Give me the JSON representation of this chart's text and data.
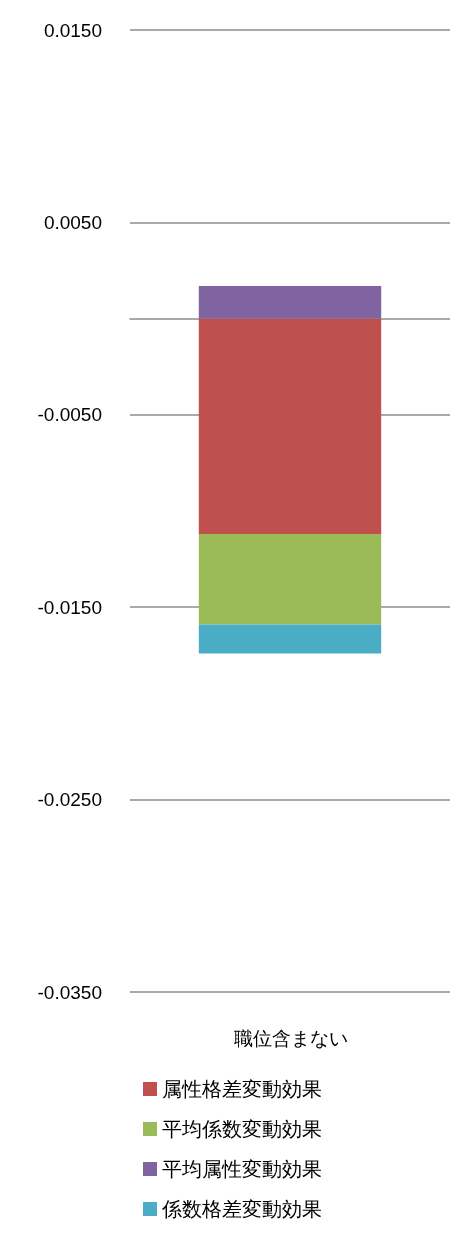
{
  "chart_data": {
    "type": "bar",
    "stacked": true,
    "categories": [
      "職位含まない"
    ],
    "series": [
      {
        "name": "属性格差変動効果",
        "color": "#c0504d",
        "values": [
          -0.0112
        ]
      },
      {
        "name": "平均係数変動効果",
        "color": "#9bbb59",
        "values": [
          -0.0047
        ]
      },
      {
        "name": "平均属性変動効果",
        "color": "#8064a2",
        "values": [
          0.0017
        ]
      },
      {
        "name": "係数格差変動効果",
        "color": "#4bacc6",
        "values": [
          -0.0015
        ]
      }
    ],
    "ylim": [
      -0.035,
      0.015
    ],
    "yticks": [
      {
        "value": -0.035,
        "label": "-0.0350"
      },
      {
        "value": -0.025,
        "label": "-0.0250"
      },
      {
        "value": -0.015,
        "label": "-0.0150"
      },
      {
        "value": -0.005,
        "label": "-0.0050"
      },
      {
        "value": 0.005,
        "label": "0.0050"
      },
      {
        "value": 0.015,
        "label": "0.0150"
      }
    ],
    "grid": "y",
    "legend": "bottom"
  }
}
